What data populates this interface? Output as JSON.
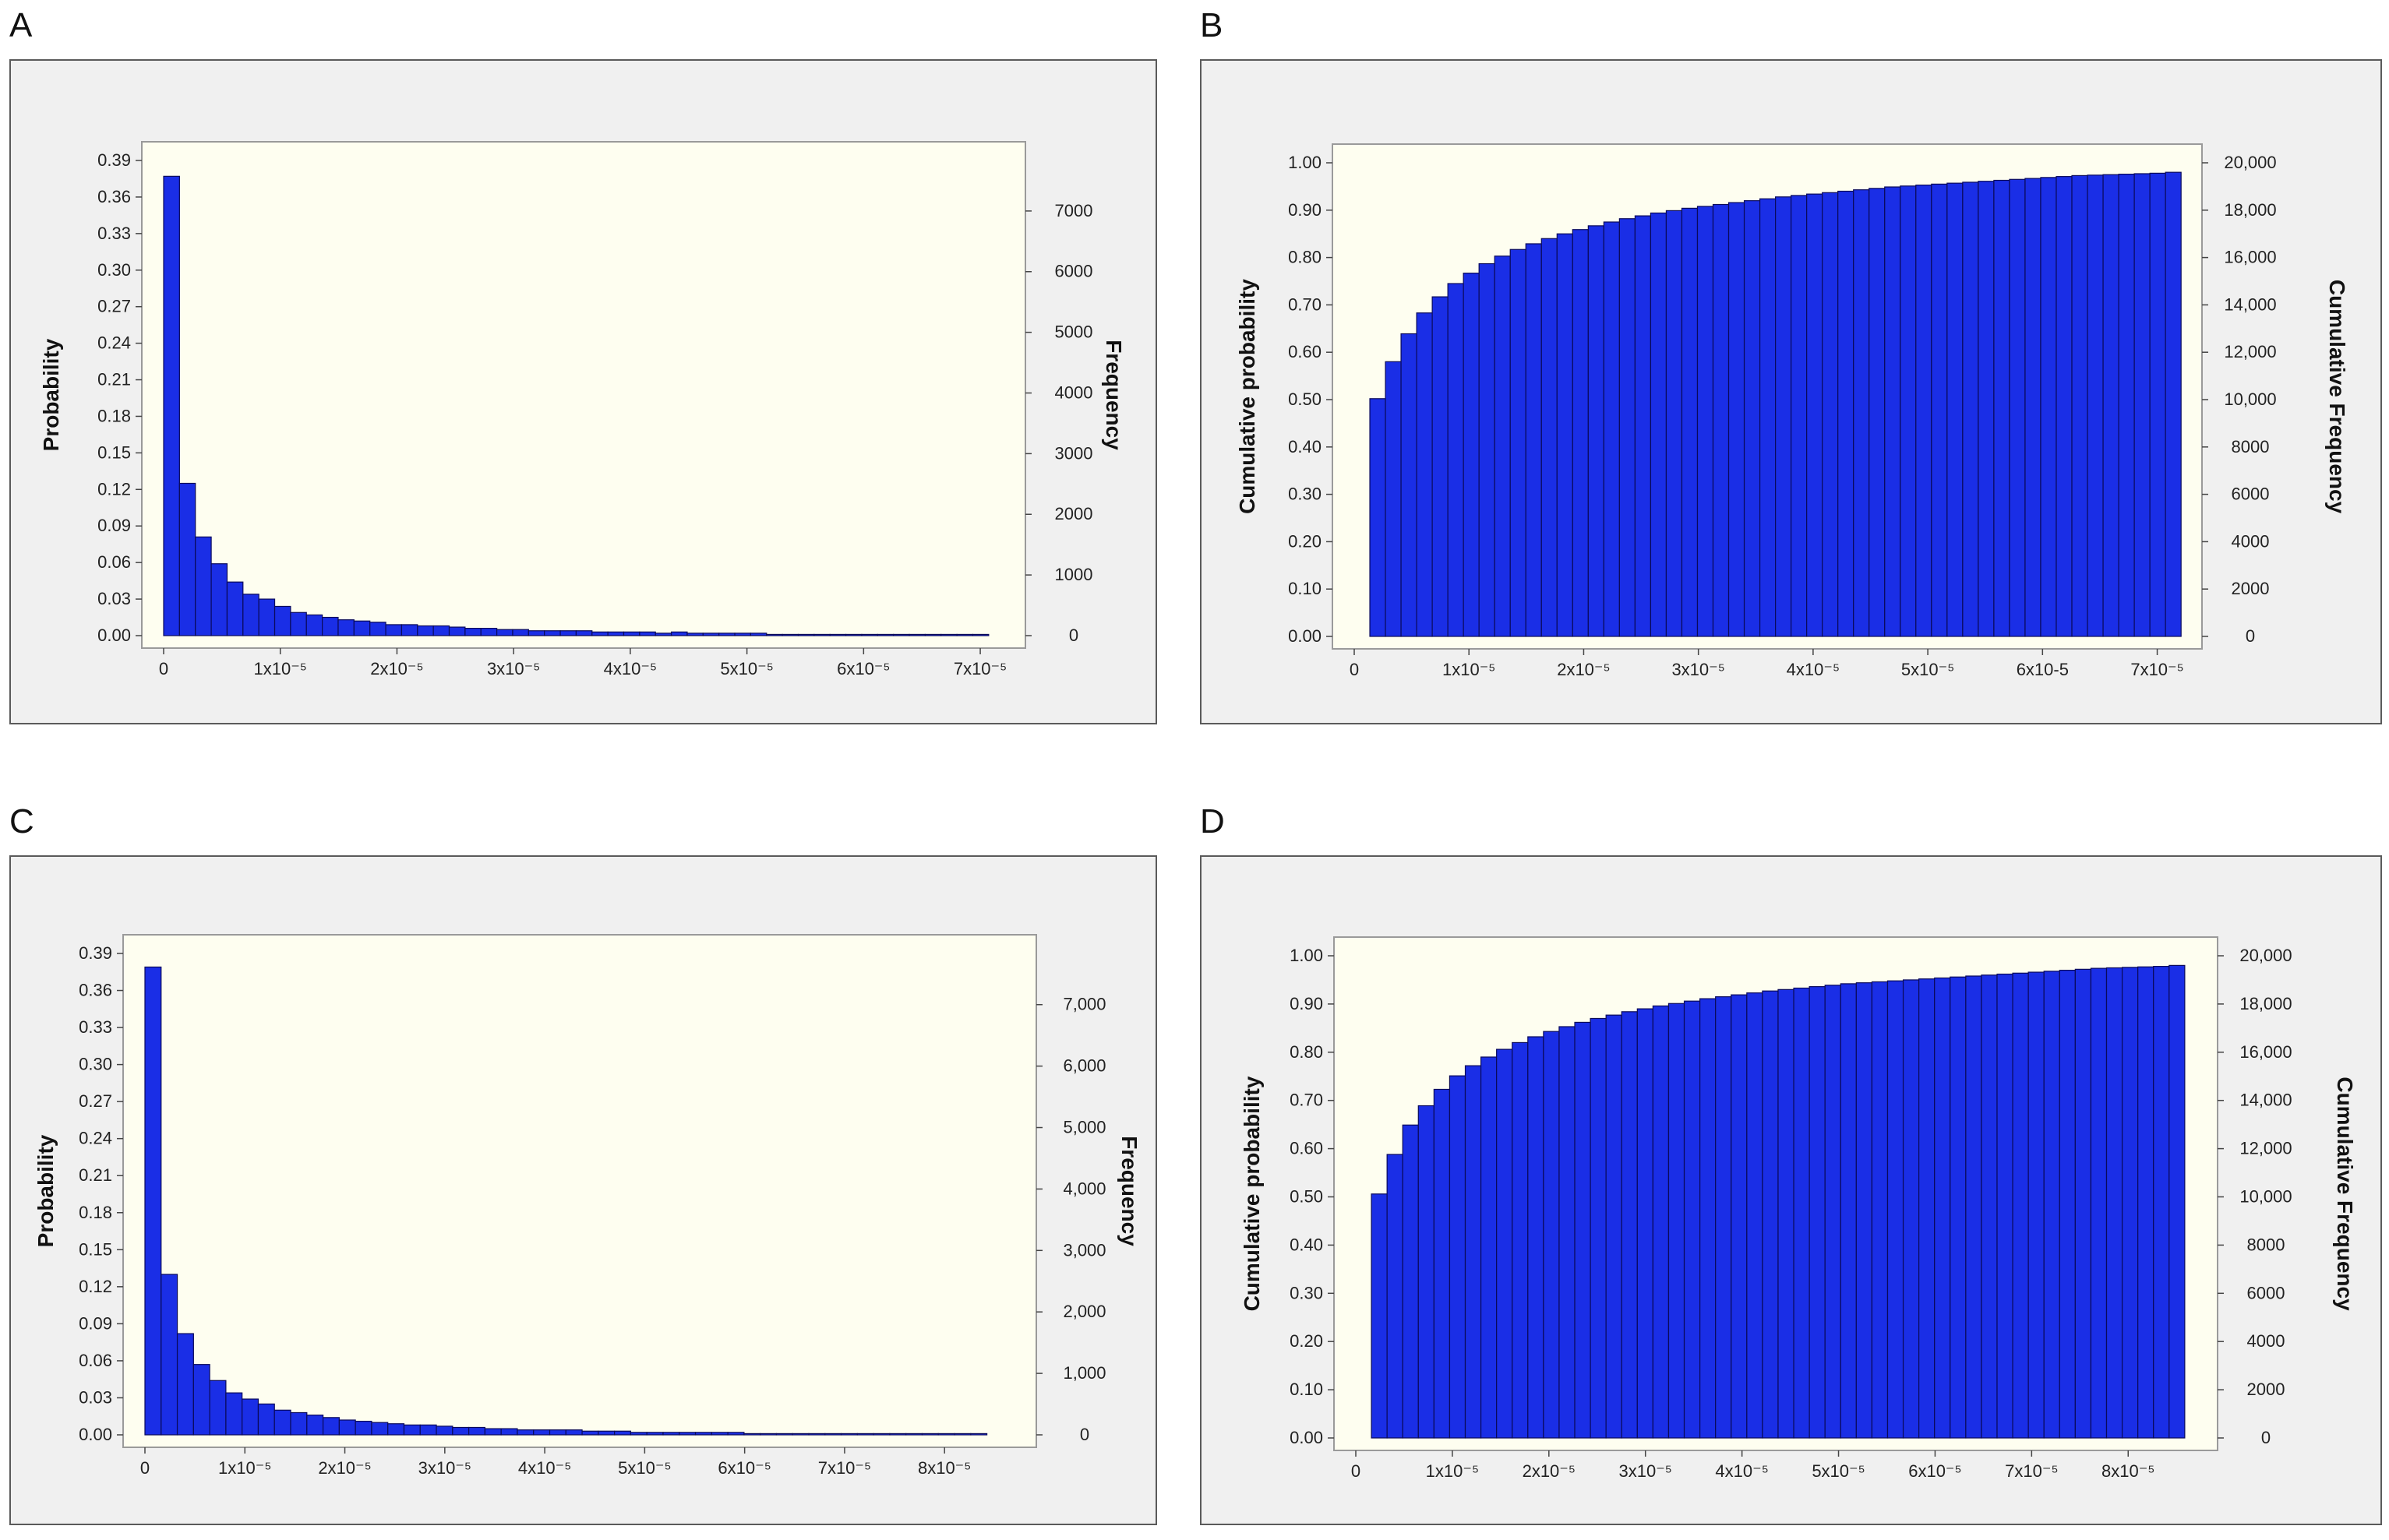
{
  "colors": {
    "bar": "#1a2ee6",
    "bar_edge": "#0a0a5a",
    "plot_bg": "#fefef0",
    "panel_bg": "#f0f0f0"
  },
  "chart_data": [
    {
      "panel": "A",
      "type": "bar",
      "bins_x": [
        0.0,
        0.136,
        0.272,
        0.408,
        0.544,
        0.68,
        0.816,
        0.952,
        1.088,
        1.224,
        1.36,
        1.496,
        1.632,
        1.768,
        1.904,
        2.04,
        2.176,
        2.312,
        2.448,
        2.584,
        2.72,
        2.856,
        2.992,
        3.128,
        3.264,
        3.4,
        3.536,
        3.672,
        3.808,
        3.944,
        4.08,
        4.216,
        4.352,
        4.488,
        4.624,
        4.76,
        4.896,
        5.032,
        5.168,
        5.304,
        5.44,
        5.576,
        5.712,
        5.848,
        5.984,
        6.12,
        6.256,
        6.392,
        6.528,
        6.664,
        6.8,
        6.936,
        7.072
      ],
      "values": [
        0.377,
        0.125,
        0.081,
        0.059,
        0.044,
        0.034,
        0.03,
        0.024,
        0.019,
        0.017,
        0.015,
        0.013,
        0.012,
        0.011,
        0.009,
        0.009,
        0.008,
        0.008,
        0.007,
        0.006,
        0.006,
        0.005,
        0.005,
        0.004,
        0.004,
        0.004,
        0.004,
        0.003,
        0.003,
        0.003,
        0.003,
        0.002,
        0.003,
        0.002,
        0.002,
        0.002,
        0.002,
        0.002,
        0.001,
        0.001,
        0.001,
        0.001,
        0.001,
        0.001,
        0.001,
        0.001,
        0.001,
        0.001,
        0.001,
        0.001,
        0.001,
        0.001
      ],
      "x_ticks": [
        "0",
        "1x10⁻⁵",
        "2x10⁻⁵",
        "3x10⁻⁵",
        "4x10⁻⁵",
        "5x10⁻⁵",
        "6x10⁻⁵",
        "7x10⁻⁵"
      ],
      "xlim": [
        0.0,
        7.2
      ],
      "y_ticks": [
        "0.00",
        "0.03",
        "0.06",
        "0.09",
        "0.12",
        "0.15",
        "0.18",
        "0.21",
        "0.24",
        "0.27",
        "0.30",
        "0.33",
        "0.36",
        "0.39"
      ],
      "ylim": [
        0,
        0.39
      ],
      "y2_ticks": [
        "0",
        "1000",
        "2000",
        "3000",
        "4000",
        "5000",
        "6000",
        "7000"
      ],
      "y2lim": [
        0,
        7833
      ],
      "ylabel": "Probability",
      "y2label": "Frequency",
      "grid": false
    },
    {
      "panel": "B",
      "type": "bar",
      "bins_x": [
        0.136,
        0.272,
        0.408,
        0.544,
        0.68,
        0.816,
        0.952,
        1.088,
        1.224,
        1.36,
        1.496,
        1.632,
        1.768,
        1.904,
        2.04,
        2.176,
        2.312,
        2.448,
        2.584,
        2.72,
        2.856,
        2.992,
        3.128,
        3.264,
        3.4,
        3.536,
        3.672,
        3.808,
        3.944,
        4.08,
        4.216,
        4.352,
        4.488,
        4.624,
        4.76,
        4.896,
        5.032,
        5.168,
        5.304,
        5.44,
        5.576,
        5.712,
        5.848,
        5.984,
        6.12,
        6.256,
        6.392,
        6.528,
        6.664,
        6.8,
        6.936,
        7.072
      ],
      "values": [
        0.502,
        0.58,
        0.639,
        0.683,
        0.717,
        0.745,
        0.767,
        0.787,
        0.803,
        0.817,
        0.829,
        0.84,
        0.85,
        0.859,
        0.867,
        0.875,
        0.882,
        0.888,
        0.894,
        0.899,
        0.904,
        0.908,
        0.912,
        0.916,
        0.92,
        0.924,
        0.928,
        0.931,
        0.934,
        0.937,
        0.94,
        0.943,
        0.946,
        0.949,
        0.951,
        0.953,
        0.955,
        0.957,
        0.959,
        0.961,
        0.963,
        0.965,
        0.967,
        0.969,
        0.971,
        0.973,
        0.974,
        0.975,
        0.976,
        0.977,
        0.978,
        0.98
      ],
      "x_ticks": [
        "0",
        "1x10⁻⁵",
        "2x10⁻⁵",
        "3x10⁻⁵",
        "4x10⁻⁵",
        "5x10⁻⁵",
        "6x10-5",
        "7x10⁻⁵"
      ],
      "xlim": [
        0.0,
        7.2
      ],
      "y_ticks": [
        "0.00",
        "0.10",
        "0.20",
        "0.30",
        "0.40",
        "0.50",
        "0.60",
        "0.70",
        "0.80",
        "0.90",
        "1.00"
      ],
      "ylim": [
        0,
        1.0
      ],
      "y2_ticks": [
        "0",
        "2000",
        "4000",
        "6000",
        "8000",
        "10,000",
        "12,000",
        "14,000",
        "16,000",
        "18,000",
        "20,000"
      ],
      "y2lim": [
        0,
        20000
      ],
      "ylabel": "Cumulative probability",
      "y2label": "Cumulative Frequency",
      "grid": false
    },
    {
      "panel": "C",
      "type": "bar",
      "bins_x": [
        0.0,
        0.162,
        0.324,
        0.486,
        0.648,
        0.81,
        0.972,
        1.134,
        1.296,
        1.458,
        1.62,
        1.782,
        1.944,
        2.106,
        2.268,
        2.43,
        2.592,
        2.754,
        2.916,
        3.078,
        3.24,
        3.402,
        3.564,
        3.726,
        3.888,
        4.05,
        4.212,
        4.374,
        4.536,
        4.698,
        4.86,
        5.022,
        5.184,
        5.346,
        5.508,
        5.67,
        5.832,
        5.994,
        6.156,
        6.318,
        6.48,
        6.642,
        6.804,
        6.966,
        7.128,
        7.29,
        7.452,
        7.614,
        7.776,
        7.938,
        8.1,
        8.262,
        8.424
      ],
      "values": [
        0.379,
        0.13,
        0.082,
        0.057,
        0.044,
        0.034,
        0.029,
        0.025,
        0.02,
        0.018,
        0.016,
        0.014,
        0.012,
        0.011,
        0.01,
        0.009,
        0.008,
        0.008,
        0.007,
        0.006,
        0.006,
        0.005,
        0.005,
        0.004,
        0.004,
        0.004,
        0.004,
        0.003,
        0.003,
        0.003,
        0.002,
        0.002,
        0.002,
        0.002,
        0.002,
        0.002,
        0.002,
        0.001,
        0.001,
        0.001,
        0.001,
        0.001,
        0.001,
        0.001,
        0.001,
        0.001,
        0.001,
        0.001,
        0.001,
        0.001,
        0.001,
        0.001
      ],
      "x_ticks": [
        "0",
        "1x10⁻⁵",
        "2x10⁻⁵",
        "3x10⁻⁵",
        "4x10⁻⁵",
        "5x10⁻⁵",
        "6x10⁻⁵",
        "7x10⁻⁵",
        "8x10⁻⁵"
      ],
      "xlim": [
        0.0,
        8.7
      ],
      "y_ticks": [
        "0.00",
        "0.03",
        "0.06",
        "0.09",
        "0.12",
        "0.15",
        "0.18",
        "0.21",
        "0.24",
        "0.27",
        "0.30",
        "0.33",
        "0.36",
        "0.39"
      ],
      "ylim": [
        0,
        0.39
      ],
      "y2_ticks": [
        "0",
        "1,000",
        "2,000",
        "3,000",
        "4,000",
        "5,000",
        "6,000",
        "7,000"
      ],
      "y2lim": [
        0,
        7833
      ],
      "ylabel": "Probability",
      "y2label": "Frequency",
      "grid": false
    },
    {
      "panel": "D",
      "type": "bar",
      "bins_x": [
        0.162,
        0.324,
        0.486,
        0.648,
        0.81,
        0.972,
        1.134,
        1.296,
        1.458,
        1.62,
        1.782,
        1.944,
        2.106,
        2.268,
        2.43,
        2.592,
        2.754,
        2.916,
        3.078,
        3.24,
        3.402,
        3.564,
        3.726,
        3.888,
        4.05,
        4.212,
        4.374,
        4.536,
        4.698,
        4.86,
        5.022,
        5.184,
        5.346,
        5.508,
        5.67,
        5.832,
        5.994,
        6.156,
        6.318,
        6.48,
        6.642,
        6.804,
        6.966,
        7.128,
        7.29,
        7.452,
        7.614,
        7.776,
        7.938,
        8.1,
        8.262,
        8.424
      ],
      "values": [
        0.506,
        0.588,
        0.649,
        0.689,
        0.723,
        0.751,
        0.772,
        0.79,
        0.806,
        0.82,
        0.832,
        0.843,
        0.853,
        0.862,
        0.87,
        0.877,
        0.884,
        0.89,
        0.896,
        0.901,
        0.906,
        0.911,
        0.915,
        0.919,
        0.923,
        0.927,
        0.93,
        0.933,
        0.936,
        0.939,
        0.942,
        0.944,
        0.946,
        0.948,
        0.95,
        0.952,
        0.954,
        0.956,
        0.958,
        0.96,
        0.962,
        0.964,
        0.966,
        0.968,
        0.97,
        0.972,
        0.974,
        0.975,
        0.976,
        0.977,
        0.978,
        0.98
      ],
      "x_ticks": [
        "0",
        "1x10⁻⁵",
        "2x10⁻⁵",
        "3x10⁻⁵",
        "4x10⁻⁵",
        "5x10⁻⁵",
        "6x10⁻⁵",
        "7x10⁻⁵",
        "8x10⁻⁵"
      ],
      "xlim": [
        0.0,
        8.7
      ],
      "y_ticks": [
        "0.00",
        "0.10",
        "0.20",
        "0.30",
        "0.40",
        "0.50",
        "0.60",
        "0.70",
        "0.80",
        "0.90",
        "1.00"
      ],
      "ylim": [
        0,
        1.0
      ],
      "y2_ticks": [
        "0",
        "2000",
        "4000",
        "6000",
        "8000",
        "10,000",
        "12,000",
        "14,000",
        "16,000",
        "18,000",
        "20,000"
      ],
      "y2lim": [
        0,
        20000
      ],
      "ylabel": "Cumulative probability",
      "y2label": "Cumulative Frequency",
      "grid": false
    }
  ]
}
